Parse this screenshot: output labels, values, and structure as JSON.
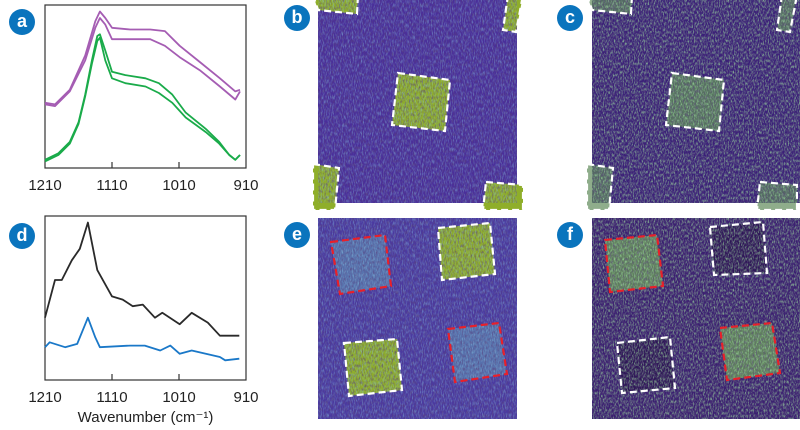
{
  "panels": {
    "a": {
      "label": "a"
    },
    "b": {
      "label": "b"
    },
    "c": {
      "label": "c"
    },
    "d": {
      "label": "d"
    },
    "e": {
      "label": "e"
    },
    "f": {
      "label": "f"
    }
  },
  "colors": {
    "badge": "#0a74bd",
    "purple": "#a55db3",
    "green": "#1aab4a",
    "black": "#2a2a2a",
    "blue": "#1a78c8",
    "image_background": "#4a2f9a",
    "image_feature": "#8fae2a",
    "outline_white": "#ffffff",
    "outline_red": "#e8202a"
  },
  "chart_data": [
    {
      "panel": "a",
      "type": "line",
      "xlabel": "",
      "xlim": [
        1210,
        910
      ],
      "x_reversed": true,
      "ylim": [
        0,
        1
      ],
      "y_ticks_shown": false,
      "grid": false,
      "x_tick_labels": [
        "1210",
        "1110",
        "1010",
        "910"
      ],
      "series": [
        {
          "color": "#a55db3",
          "x": [
            1210,
            1195,
            1173,
            1150,
            1135,
            1128,
            1120,
            1110,
            1083,
            1053,
            1031,
            1009,
            979,
            949,
            926,
            919
          ],
          "y": [
            0.4,
            0.39,
            0.48,
            0.69,
            0.9,
            0.96,
            0.92,
            0.86,
            0.85,
            0.85,
            0.84,
            0.75,
            0.65,
            0.55,
            0.47,
            0.48
          ]
        },
        {
          "color": "#a55db3",
          "x": [
            1210,
            1195,
            1173,
            1150,
            1135,
            1128,
            1120,
            1110,
            1083,
            1053,
            1031,
            1009,
            979,
            949,
            926,
            919
          ],
          "y": [
            0.39,
            0.38,
            0.47,
            0.66,
            0.86,
            0.92,
            0.88,
            0.79,
            0.79,
            0.79,
            0.75,
            0.68,
            0.6,
            0.5,
            0.42,
            0.47
          ]
        },
        {
          "color": "#1aab4a",
          "x": [
            1210,
            1190,
            1173,
            1160,
            1150,
            1140,
            1132,
            1128,
            1120,
            1110,
            1090,
            1060,
            1040,
            1020,
            1000,
            970,
            950,
            935,
            926,
            919
          ],
          "y": [
            0.05,
            0.09,
            0.16,
            0.28,
            0.45,
            0.66,
            0.81,
            0.82,
            0.72,
            0.59,
            0.57,
            0.55,
            0.52,
            0.45,
            0.34,
            0.24,
            0.16,
            0.08,
            0.05,
            0.08
          ]
        },
        {
          "color": "#1aab4a",
          "x": [
            1210,
            1190,
            1173,
            1160,
            1150,
            1140,
            1132,
            1128,
            1120,
            1110,
            1090,
            1060,
            1040,
            1020,
            1000,
            970,
            950,
            935,
            926,
            919
          ],
          "y": [
            0.04,
            0.08,
            0.15,
            0.27,
            0.44,
            0.64,
            0.78,
            0.8,
            0.66,
            0.55,
            0.52,
            0.5,
            0.46,
            0.4,
            0.31,
            0.22,
            0.15,
            0.08,
            0.05,
            0.08
          ]
        }
      ]
    },
    {
      "panel": "d",
      "type": "line",
      "xlabel": "Wavenumber (cm⁻¹)",
      "xlim": [
        1210,
        910
      ],
      "x_reversed": true,
      "ylim": [
        0,
        1
      ],
      "y_ticks_shown": false,
      "grid": false,
      "x_tick_labels": [
        "1210",
        "1110",
        "1010",
        "910"
      ],
      "series": [
        {
          "color": "#2a2a2a",
          "x": [
            1210,
            1195,
            1185,
            1170,
            1158,
            1146,
            1132,
            1110,
            1094,
            1079,
            1064,
            1046,
            1035,
            1009,
            991,
            967,
            949,
            920
          ],
          "y": [
            0.38,
            0.61,
            0.61,
            0.73,
            0.8,
            0.96,
            0.67,
            0.51,
            0.49,
            0.45,
            0.46,
            0.38,
            0.41,
            0.34,
            0.41,
            0.35,
            0.27,
            0.27
          ]
        },
        {
          "color": "#1a78c8",
          "x": [
            1210,
            1203,
            1180,
            1162,
            1146,
            1135,
            1128,
            1083,
            1061,
            1038,
            1023,
            1009,
            991,
            949,
            941,
            920
          ],
          "y": [
            0.2,
            0.23,
            0.2,
            0.22,
            0.38,
            0.26,
            0.2,
            0.21,
            0.21,
            0.18,
            0.21,
            0.16,
            0.18,
            0.14,
            0.12,
            0.13
          ]
        }
      ]
    }
  ]
}
